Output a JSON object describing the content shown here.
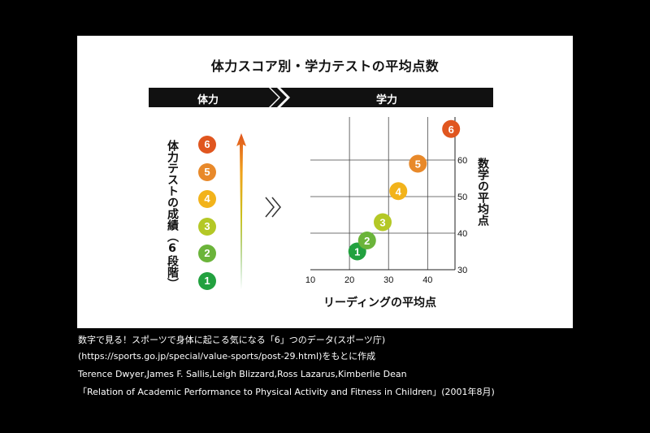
{
  "title": "体力スコア別・学力テストの平均点数",
  "header_bar": {
    "left": "体力",
    "right": "学力"
  },
  "left_axis_label": "体力テストの成績（6段階）",
  "levels": [
    {
      "label": "6",
      "color": "#e0561f"
    },
    {
      "label": "5",
      "color": "#e8892a"
    },
    {
      "label": "4",
      "color": "#f2b31b"
    },
    {
      "label": "3",
      "color": "#b4c826"
    },
    {
      "label": "2",
      "color": "#6bb43a"
    },
    {
      "label": "1",
      "color": "#22a13f"
    }
  ],
  "chart_data": {
    "type": "scatter",
    "xlabel": "リーディングの平均点",
    "ylabel": "数学の平均点",
    "xlim": [
      10,
      47
    ],
    "ylim": [
      30,
      70
    ],
    "xticks": [
      10,
      20,
      30,
      40
    ],
    "yticks": [
      30,
      40,
      50,
      60
    ],
    "points": [
      {
        "label": "1",
        "x": 22,
        "y": 35,
        "color": "#22a13f"
      },
      {
        "label": "2",
        "x": 24.5,
        "y": 38,
        "color": "#6bb43a"
      },
      {
        "label": "3",
        "x": 28.5,
        "y": 43,
        "color": "#b4c826"
      },
      {
        "label": "4",
        "x": 32.5,
        "y": 51.5,
        "color": "#f2b31b"
      },
      {
        "label": "5",
        "x": 37.5,
        "y": 59,
        "color": "#e8892a"
      },
      {
        "label": "6",
        "x": 46,
        "y": 68.5,
        "color": "#e0561f"
      }
    ]
  },
  "source": {
    "line1": "数字で見る！スポーツで身体に起こる気になる「6」つのデータ(スポーツ庁)",
    "line2": "(https://sports.go.jp/special/value-sports/post-29.html)をもとに作成",
    "line3": "Terence Dwyer,James F. Sallis,Leigh Blizzard,Ross Lazarus,Kimberlie Dean",
    "line4": "「Relation of Academic Performance to Physical Activity and Fitness in Children」(2001年8月)"
  }
}
